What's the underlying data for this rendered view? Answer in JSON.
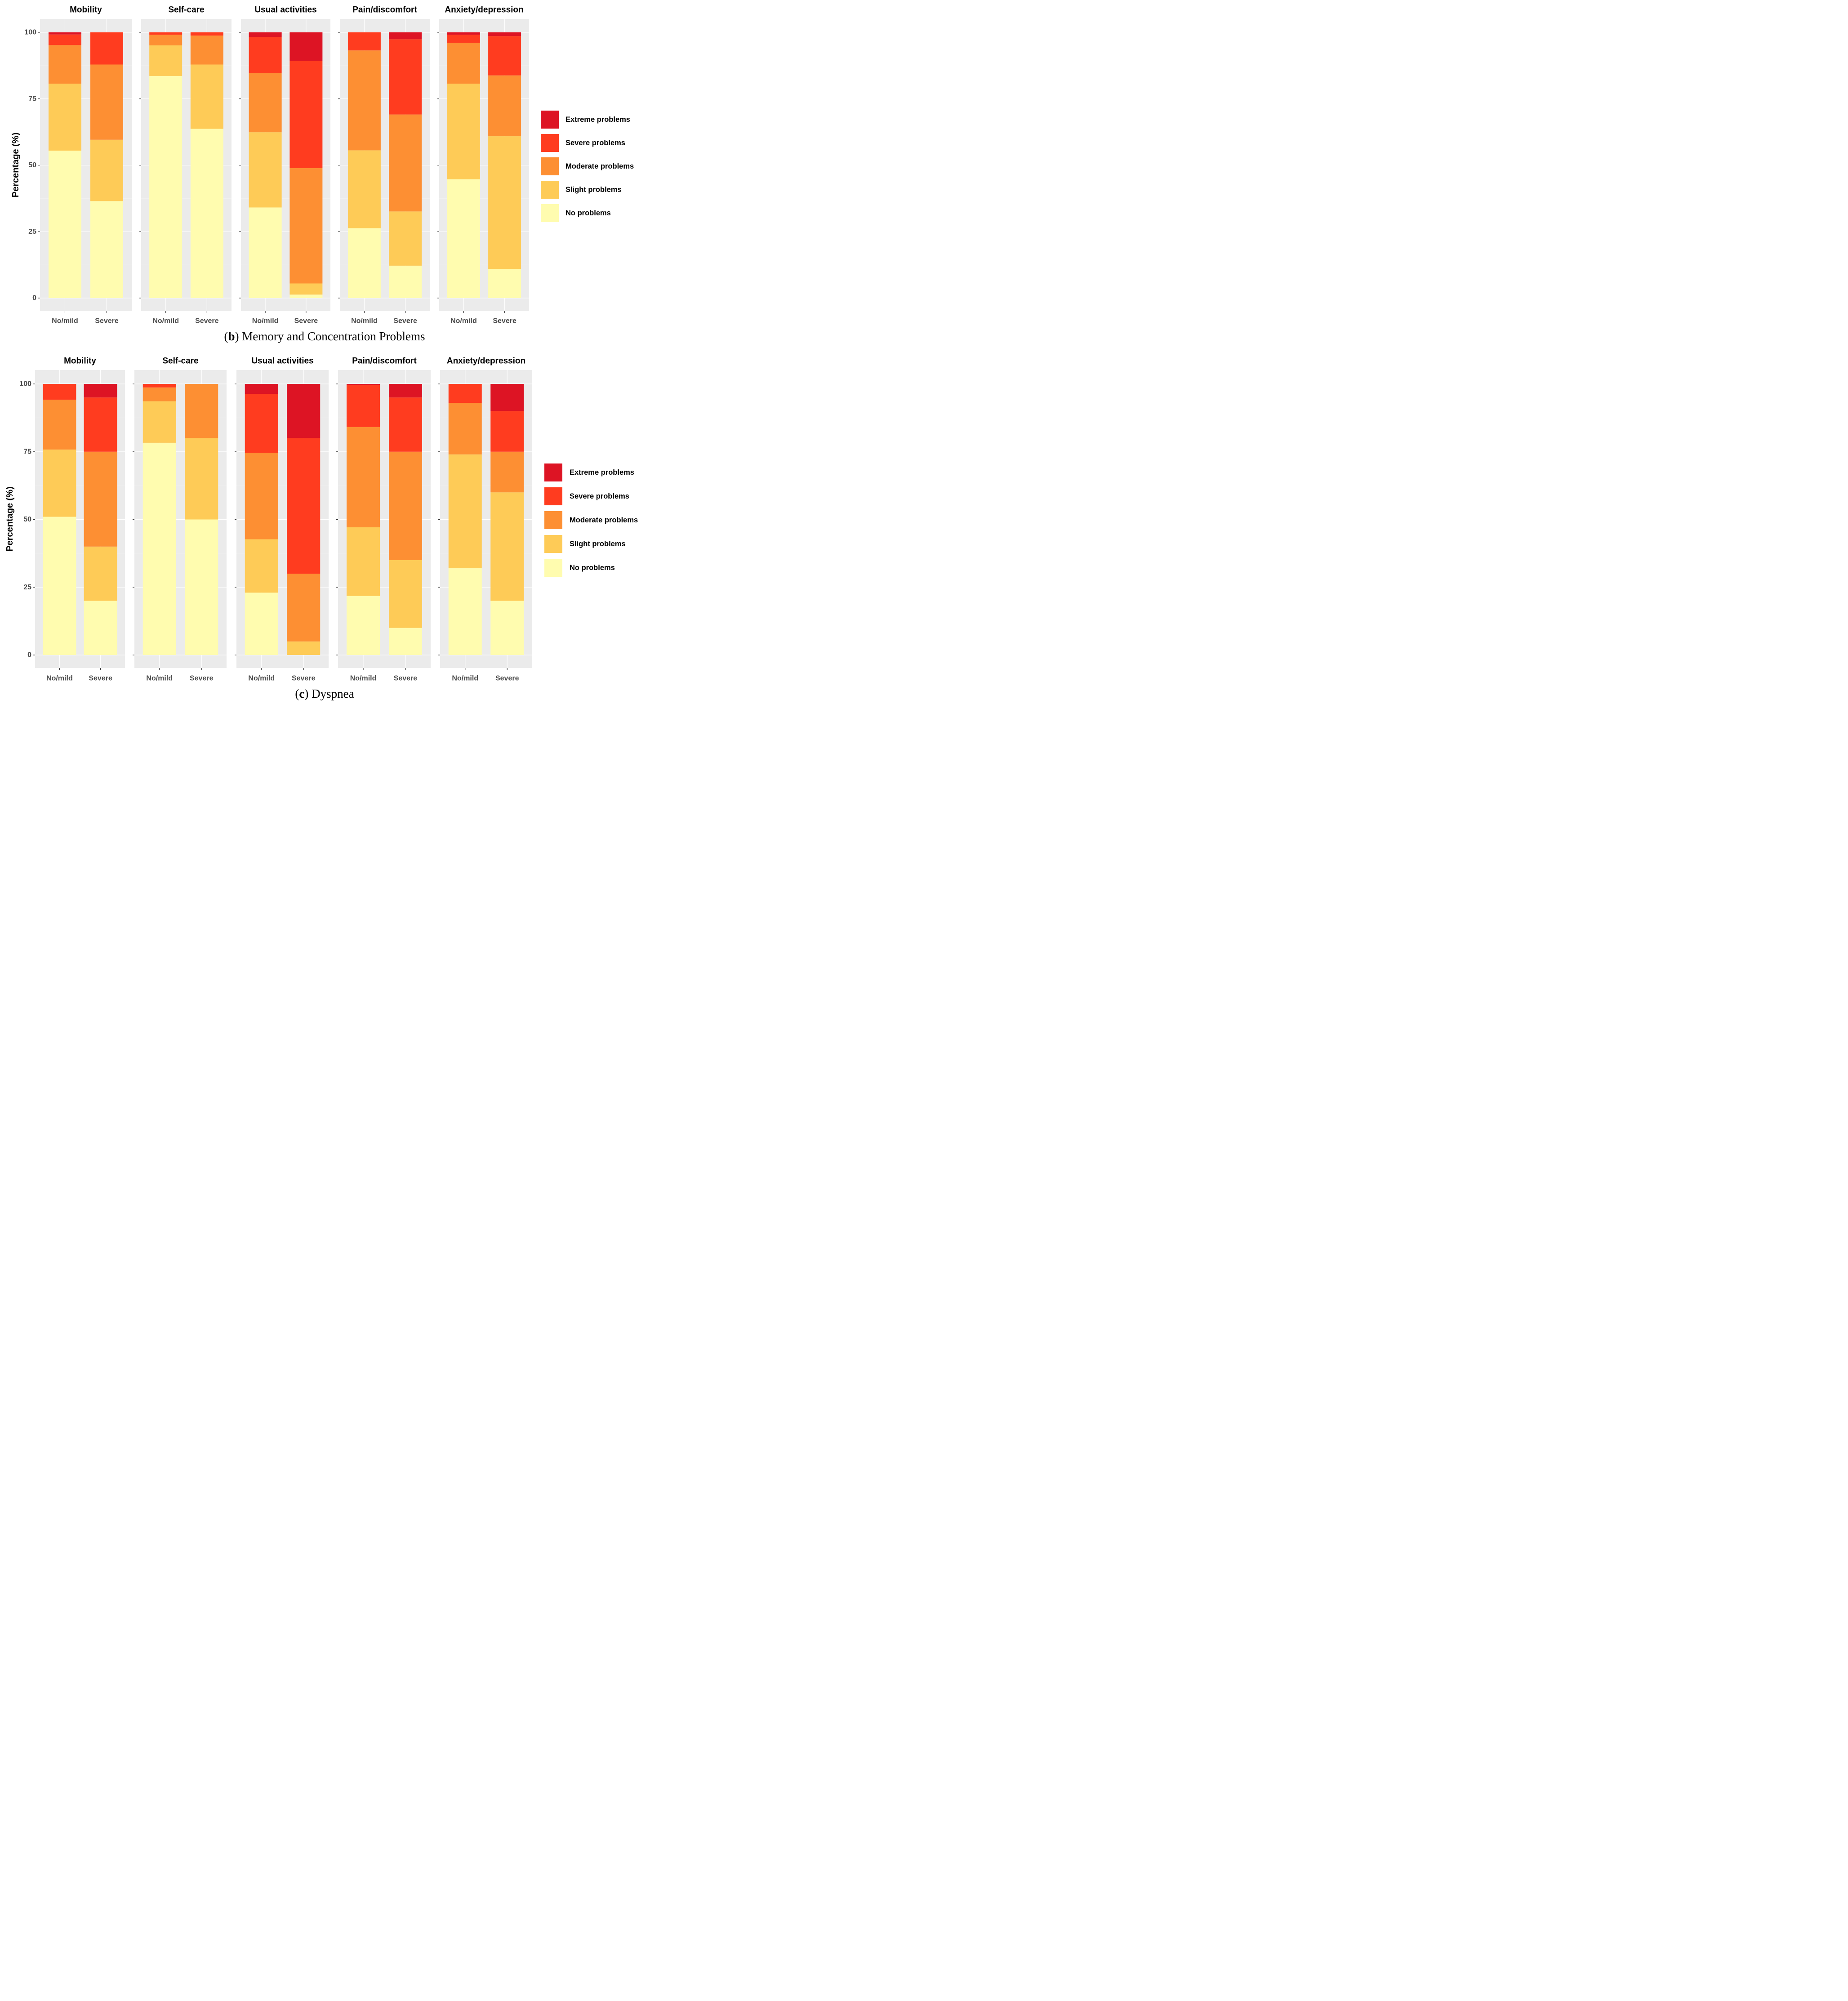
{
  "chart_data": [
    {
      "type": "bar",
      "stacked": true,
      "caption_letter": "b",
      "caption_text": "Memory and Concentration Problems",
      "ylabel": "Percentage (%)",
      "ylim": [
        0,
        100
      ],
      "yticks": [
        "0",
        "25",
        "50",
        "75",
        "100"
      ],
      "categories": [
        "No/mild",
        "Severe"
      ],
      "legend_title": "",
      "legend_position": "right",
      "facets": [
        {
          "title": "Mobility",
          "series": [
            {
              "name": "No problems",
              "values": [
                55.5,
                36.5
              ]
            },
            {
              "name": "Slight problems",
              "values": [
                25.2,
                23.1
              ]
            },
            {
              "name": "Moderate problems",
              "values": [
                14.5,
                28.3
              ]
            },
            {
              "name": "Severe problems",
              "values": [
                4.0,
                12.1
              ]
            },
            {
              "name": "Extreme problems",
              "values": [
                0.8,
                0.0
              ]
            }
          ]
        },
        {
          "title": "Self-care",
          "series": [
            {
              "name": "No problems",
              "values": [
                83.6,
                63.7
              ]
            },
            {
              "name": "Slight problems",
              "values": [
                11.5,
                24.2
              ]
            },
            {
              "name": "Moderate problems",
              "values": [
                4.0,
                10.9
              ]
            },
            {
              "name": "Severe problems",
              "values": [
                0.9,
                1.2
              ]
            },
            {
              "name": "Extreme problems",
              "values": [
                0.0,
                0.0
              ]
            }
          ]
        },
        {
          "title": "Usual activities",
          "series": [
            {
              "name": "No problems",
              "values": [
                34.1,
                1.3
              ]
            },
            {
              "name": "Slight problems",
              "values": [
                28.3,
                4.2
              ]
            },
            {
              "name": "Moderate problems",
              "values": [
                22.2,
                43.4
              ]
            },
            {
              "name": "Severe problems",
              "values": [
                13.6,
                40.3
              ]
            },
            {
              "name": "Extreme problems",
              "values": [
                1.8,
                10.8
              ]
            }
          ]
        },
        {
          "title": "Pain/discomfort",
          "series": [
            {
              "name": "No problems",
              "values": [
                26.3,
                12.2
              ]
            },
            {
              "name": "Slight problems",
              "values": [
                29.3,
                20.4
              ]
            },
            {
              "name": "Moderate problems",
              "values": [
                37.6,
                36.5
              ]
            },
            {
              "name": "Severe problems",
              "values": [
                6.8,
                28.3
              ]
            },
            {
              "name": "Extreme problems",
              "values": [
                0.0,
                2.6
              ]
            }
          ]
        },
        {
          "title": "Anxiety/depression",
          "series": [
            {
              "name": "No problems",
              "values": [
                44.7,
                10.9
              ]
            },
            {
              "name": "Slight problems",
              "values": [
                36.0,
                50.0
              ]
            },
            {
              "name": "Moderate problems",
              "values": [
                15.4,
                22.9
              ]
            },
            {
              "name": "Severe problems",
              "values": [
                3.0,
                14.8
              ]
            },
            {
              "name": "Extreme problems",
              "values": [
                0.9,
                1.4
              ]
            }
          ]
        }
      ]
    },
    {
      "type": "bar",
      "stacked": true,
      "caption_letter": "c",
      "caption_text": "Dyspnea",
      "ylabel": "Percentage (%)",
      "ylim": [
        0,
        100
      ],
      "yticks": [
        "0",
        "25",
        "50",
        "75",
        "100"
      ],
      "categories": [
        "No/mild",
        "Severe"
      ],
      "legend_title": "",
      "legend_position": "right",
      "facets": [
        {
          "title": "Mobility",
          "series": [
            {
              "name": "No problems",
              "values": [
                51.0,
                20.0
              ]
            },
            {
              "name": "Slight problems",
              "values": [
                24.8,
                20.0
              ]
            },
            {
              "name": "Moderate problems",
              "values": [
                18.4,
                35.0
              ]
            },
            {
              "name": "Severe problems",
              "values": [
                5.8,
                20.0
              ]
            },
            {
              "name": "Extreme problems",
              "values": [
                0.0,
                5.0
              ]
            }
          ]
        },
        {
          "title": "Self-care",
          "series": [
            {
              "name": "No problems",
              "values": [
                78.3,
                50.0
              ]
            },
            {
              "name": "Slight problems",
              "values": [
                15.3,
                30.0
              ]
            },
            {
              "name": "Moderate problems",
              "values": [
                5.1,
                20.0
              ]
            },
            {
              "name": "Severe problems",
              "values": [
                1.3,
                0.0
              ]
            },
            {
              "name": "Extreme problems",
              "values": [
                0.0,
                0.0
              ]
            }
          ]
        },
        {
          "title": "Usual activities",
          "series": [
            {
              "name": "No problems",
              "values": [
                23.0,
                0.0
              ]
            },
            {
              "name": "Slight problems",
              "values": [
                19.7,
                5.0
              ]
            },
            {
              "name": "Moderate problems",
              "values": [
                31.9,
                25.0
              ]
            },
            {
              "name": "Severe problems",
              "values": [
                21.7,
                50.0
              ]
            },
            {
              "name": "Extreme problems",
              "values": [
                3.7,
                20.0
              ]
            }
          ]
        },
        {
          "title": "Pain/discomfort",
          "series": [
            {
              "name": "No problems",
              "values": [
                21.8,
                10.0
              ]
            },
            {
              "name": "Slight problems",
              "values": [
                25.3,
                25.0
              ]
            },
            {
              "name": "Moderate problems",
              "values": [
                37.0,
                40.0
              ]
            },
            {
              "name": "Severe problems",
              "values": [
                15.4,
                20.0
              ]
            },
            {
              "name": "Extreme problems",
              "values": [
                0.5,
                5.0
              ]
            }
          ]
        },
        {
          "title": "Anxiety/depression",
          "series": [
            {
              "name": "No problems",
              "values": [
                32.0,
                20.0
              ]
            },
            {
              "name": "Slight problems",
              "values": [
                42.0,
                40.0
              ]
            },
            {
              "name": "Moderate problems",
              "values": [
                19.0,
                15.0
              ]
            },
            {
              "name": "Severe problems",
              "values": [
                7.0,
                15.0
              ]
            },
            {
              "name": "Extreme problems",
              "values": [
                0.0,
                10.0
              ]
            }
          ]
        }
      ]
    }
  ],
  "legend": {
    "entries": [
      {
        "name": "Extreme problems",
        "color": "#dd1424"
      },
      {
        "name": "Severe problems",
        "color": "#ff3c1f"
      },
      {
        "name": "Moderate problems",
        "color": "#fd8f33"
      },
      {
        "name": "Slight problems",
        "color": "#fecb57"
      },
      {
        "name": "No problems",
        "color": "#fffcaf"
      }
    ]
  }
}
